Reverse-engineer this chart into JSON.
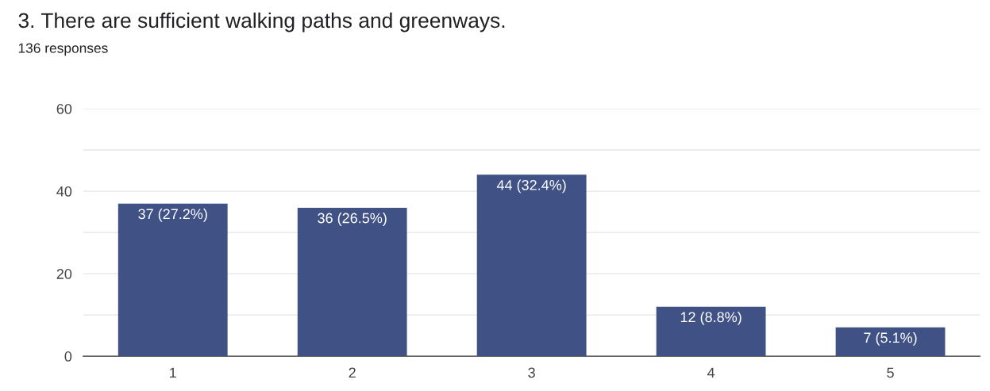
{
  "chart_data": {
    "type": "bar",
    "title": "3. There are sufficient walking paths and greenways.",
    "subtitle": "136 responses",
    "categories": [
      "1",
      "2",
      "3",
      "4",
      "5"
    ],
    "values": [
      37,
      36,
      44,
      12,
      7
    ],
    "value_labels": [
      "37 (27.2%)",
      "36 (26.5%)",
      "44 (32.4%)",
      "12 (8.8%)",
      "7 (5.1%)"
    ],
    "color": "#3f5185",
    "ylim": [
      0,
      60
    ],
    "yticks": [
      0,
      {
        "value": 10,
        "label": null
      },
      20,
      {
        "value": 30,
        "label": null
      },
      40,
      {
        "value": 50,
        "label": null
      },
      60
    ],
    "grid": "y",
    "legend": false
  }
}
